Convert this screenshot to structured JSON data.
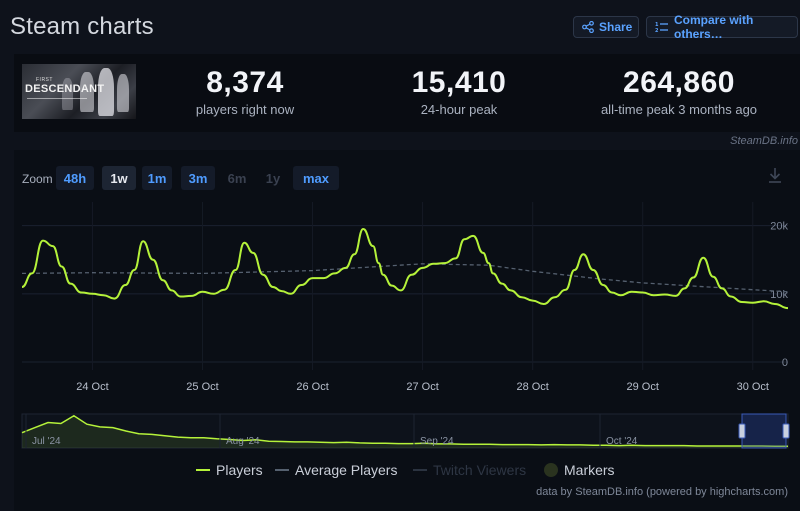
{
  "header": {
    "title": "Steam charts",
    "share_label": "Share",
    "compare_label": "Compare with others…"
  },
  "stats": {
    "game_banner": {
      "small": "FIRST",
      "big": "DESCENDANT"
    },
    "current": {
      "value": "8,374",
      "label": "players right now"
    },
    "peak24": {
      "value": "15,410",
      "label": "24-hour peak"
    },
    "alltime": {
      "value": "264,860",
      "label": "all-time peak 3 months ago"
    }
  },
  "credit": "SteamDB.info",
  "zoom": {
    "label": "Zoom",
    "options": [
      {
        "label": "48h",
        "state": "available"
      },
      {
        "label": "1w",
        "state": "active"
      },
      {
        "label": "1m",
        "state": "available"
      },
      {
        "label": "3m",
        "state": "available"
      },
      {
        "label": "6m",
        "state": "disabled"
      },
      {
        "label": "1y",
        "state": "disabled"
      },
      {
        "label": "max",
        "state": "available"
      }
    ]
  },
  "legend": [
    {
      "label": "Players",
      "color": "#b5f23a",
      "enabled": true
    },
    {
      "label": "Average Players",
      "color": "#55606f",
      "enabled": true
    },
    {
      "label": "Twitch Viewers",
      "color": "#2b3340",
      "enabled": false
    },
    {
      "label": "Markers",
      "color": "#2a331f",
      "enabled": true
    }
  ],
  "footer": "data by SteamDB.info (powered by highcharts.com)",
  "chart_data": {
    "type": "line",
    "x_ticks": [
      "24 Oct",
      "25 Oct",
      "26 Oct",
      "27 Oct",
      "28 Oct",
      "29 Oct",
      "30 Oct"
    ],
    "y_ticks": [
      "0",
      "10k",
      "20k"
    ],
    "ylim": [
      0,
      22000
    ],
    "xlim_days": [
      23.36,
      30.32
    ],
    "series": [
      {
        "name": "Players",
        "color": "#b5f23a",
        "x": [
          23.36,
          23.45,
          23.55,
          23.64,
          23.72,
          23.8,
          23.9,
          24.0,
          24.1,
          24.2,
          24.3,
          24.38,
          24.46,
          24.55,
          24.64,
          24.72,
          24.8,
          24.9,
          25.0,
          25.1,
          25.2,
          25.3,
          25.38,
          25.46,
          25.55,
          25.64,
          25.72,
          25.8,
          25.9,
          26.0,
          26.1,
          26.2,
          26.3,
          26.38,
          26.46,
          26.55,
          26.6,
          26.64,
          26.72,
          26.8,
          26.9,
          27.0,
          27.1,
          27.2,
          27.3,
          27.38,
          27.46,
          27.55,
          27.6,
          27.64,
          27.72,
          27.8,
          27.9,
          28.0,
          28.1,
          28.2,
          28.3,
          28.38,
          28.46,
          28.55,
          28.64,
          28.72,
          28.8,
          28.9,
          29.0,
          29.1,
          29.2,
          29.3,
          29.38,
          29.46,
          29.55,
          29.64,
          29.72,
          29.8,
          29.9,
          30.0,
          30.1,
          30.2,
          30.32
        ],
        "y": [
          11000,
          13000,
          17800,
          17000,
          14000,
          11500,
          10200,
          10000,
          9800,
          9300,
          11300,
          13500,
          17700,
          15000,
          12000,
          10500,
          9600,
          9700,
          10300,
          10000,
          10600,
          13500,
          17500,
          16000,
          12800,
          11000,
          10400,
          10000,
          11300,
          12300,
          12300,
          13000,
          13800,
          15800,
          19500,
          17000,
          14500,
          12800,
          11200,
          10500,
          12800,
          13800,
          14400,
          14500,
          15200,
          18000,
          18500,
          16000,
          14500,
          13000,
          11500,
          10500,
          9500,
          9000,
          8500,
          9500,
          10600,
          13500,
          15800,
          13500,
          11300,
          10200,
          9800,
          10300,
          10200,
          9800,
          9900,
          9700,
          10800,
          12400,
          15300,
          12500,
          10800,
          9600,
          8800,
          8700,
          8900,
          8500,
          7900
        ]
      },
      {
        "name": "Average Players",
        "color": "#55606f",
        "x": [
          23.36,
          24.0,
          25.0,
          26.0,
          26.6,
          27.0,
          27.6,
          28.0,
          28.6,
          29.0,
          29.6,
          30.0,
          30.32
        ],
        "y": [
          13000,
          13100,
          13000,
          13400,
          14000,
          14400,
          14200,
          13300,
          12200,
          11600,
          11000,
          10600,
          10300
        ]
      }
    ],
    "navigator": {
      "x_ticks": [
        "Jul '24",
        "Aug '24",
        "Sep '24",
        "Oct '24"
      ],
      "y": [
        0.45,
        0.6,
        0.75,
        0.72,
        0.95,
        0.7,
        0.62,
        0.6,
        0.5,
        0.42,
        0.4,
        0.36,
        0.32,
        0.3,
        0.3,
        0.27,
        0.25,
        0.22,
        0.24,
        0.2,
        0.19,
        0.18,
        0.18,
        0.17,
        0.16,
        0.17,
        0.15,
        0.14,
        0.14,
        0.13,
        0.13,
        0.14,
        0.12,
        0.12,
        0.11,
        0.11,
        0.11,
        0.1,
        0.1,
        0.1,
        0.09,
        0.1,
        0.09,
        0.09,
        0.08,
        0.08,
        0.07,
        0.08,
        0.07,
        0.07,
        0.07,
        0.07,
        0.06,
        0.06,
        0.06,
        0.06,
        0.06,
        0.06,
        0.05,
        0.05
      ]
    }
  }
}
